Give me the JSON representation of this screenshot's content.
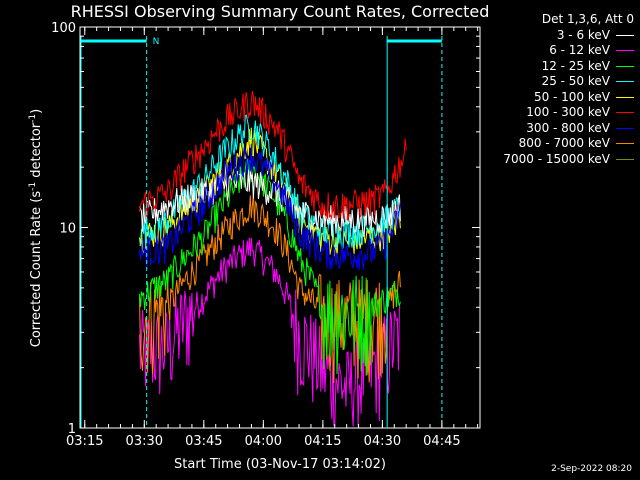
{
  "chart_data": {
    "type": "line",
    "title": "RHESSI Observing Summary Count Rates, Corrected",
    "xlabel": "Start Time (03-Nov-17 03:14:02)",
    "ylabel_main": "Corrected Count Rate (s",
    "ylabel_sup1": "-1",
    "ylabel_mid": " detector",
    "ylabel_sup2": "-1",
    "ylabel_end": ")",
    "yscale": "log",
    "ylim": [
      1,
      100
    ],
    "xlim_minutes": [
      3.23,
      4.91
    ],
    "ytick_labels": [
      "1",
      "10",
      "100"
    ],
    "xtick_labels": [
      "03:15",
      "03:30",
      "03:45",
      "04:00",
      "04:15",
      "04:30",
      "04:45"
    ],
    "xtick_values": [
      3.25,
      3.5,
      3.75,
      4.0,
      4.25,
      4.5,
      4.75
    ],
    "legend_header": "Det 1,3,6, Att 0",
    "night_marker": "N",
    "series": [
      {
        "name": "3 - 6 keV",
        "color": "#ffffff",
        "profile": [
          [
            3.48,
            11
          ],
          [
            3.6,
            13
          ],
          [
            3.75,
            15
          ],
          [
            3.85,
            16.5
          ],
          [
            3.95,
            17
          ],
          [
            4.05,
            15
          ],
          [
            4.15,
            12
          ],
          [
            4.25,
            11
          ],
          [
            4.35,
            11
          ],
          [
            4.45,
            11
          ],
          [
            4.52,
            11.5
          ],
          [
            4.58,
            13
          ]
        ]
      },
      {
        "name": "6 - 12 keV",
        "color": "#ff00ff",
        "profile": [
          [
            3.48,
            2.5
          ],
          [
            3.6,
            2.6
          ],
          [
            3.75,
            4.5
          ],
          [
            3.85,
            6.5
          ],
          [
            3.95,
            8
          ],
          [
            4.05,
            6
          ],
          [
            4.15,
            3
          ],
          [
            4.25,
            2
          ],
          [
            4.35,
            1.6
          ],
          [
            4.45,
            2
          ],
          [
            4.52,
            2.5
          ],
          [
            4.58,
            3
          ]
        ]
      },
      {
        "name": "12 - 25 keV",
        "color": "#00ff00",
        "profile": [
          [
            3.48,
            4.5
          ],
          [
            3.6,
            5.5
          ],
          [
            3.75,
            9
          ],
          [
            3.85,
            14
          ],
          [
            3.95,
            20
          ],
          [
            4.05,
            14
          ],
          [
            4.15,
            7
          ],
          [
            4.25,
            4
          ],
          [
            4.35,
            3.8
          ],
          [
            4.45,
            4
          ],
          [
            4.52,
            4.5
          ],
          [
            4.58,
            5
          ]
        ]
      },
      {
        "name": "25 - 50 keV",
        "color": "#00ffff",
        "profile": [
          [
            3.48,
            9.5
          ],
          [
            3.6,
            11
          ],
          [
            3.75,
            17
          ],
          [
            3.85,
            25
          ],
          [
            3.95,
            33
          ],
          [
            4.05,
            22
          ],
          [
            4.15,
            12
          ],
          [
            4.25,
            9.5
          ],
          [
            4.35,
            9.5
          ],
          [
            4.45,
            10
          ],
          [
            4.52,
            11
          ],
          [
            4.58,
            13
          ]
        ]
      },
      {
        "name": "50 - 100 keV",
        "color": "#ffff00",
        "profile": [
          [
            3.48,
            9
          ],
          [
            3.6,
            10
          ],
          [
            3.75,
            15
          ],
          [
            3.85,
            20
          ],
          [
            3.95,
            28
          ],
          [
            4.05,
            19
          ],
          [
            4.15,
            11
          ],
          [
            4.25,
            8.8
          ],
          [
            4.35,
            8.5
          ],
          [
            4.45,
            9
          ],
          [
            4.52,
            9.5
          ],
          [
            4.58,
            11
          ]
        ]
      },
      {
        "name": "100 - 300 keV",
        "color": "#ff0000",
        "profile": [
          [
            3.48,
            13
          ],
          [
            3.6,
            15
          ],
          [
            3.75,
            25
          ],
          [
            3.85,
            35
          ],
          [
            3.95,
            43
          ],
          [
            4.05,
            32
          ],
          [
            4.15,
            17
          ],
          [
            4.25,
            13
          ],
          [
            4.35,
            13
          ],
          [
            4.45,
            13.5
          ],
          [
            4.52,
            15
          ],
          [
            4.6,
            24
          ]
        ]
      },
      {
        "name": "300 - 800 keV",
        "color": "#0000ff",
        "profile": [
          [
            3.48,
            7.5
          ],
          [
            3.6,
            8
          ],
          [
            3.75,
            13
          ],
          [
            3.85,
            19
          ],
          [
            3.95,
            23
          ],
          [
            4.05,
            17
          ],
          [
            4.15,
            9.5
          ],
          [
            4.25,
            7.5
          ],
          [
            4.35,
            7.3
          ],
          [
            4.45,
            7.5
          ],
          [
            4.52,
            8.5
          ],
          [
            4.58,
            12
          ]
        ]
      },
      {
        "name": "800 - 7000 keV",
        "color": "#ff8800",
        "profile": [
          [
            3.48,
            3.5
          ],
          [
            3.6,
            4
          ],
          [
            3.75,
            7
          ],
          [
            3.85,
            10
          ],
          [
            3.95,
            13
          ],
          [
            4.05,
            10
          ],
          [
            4.15,
            5
          ],
          [
            4.25,
            3.7
          ],
          [
            4.35,
            3.6
          ],
          [
            4.45,
            3.7
          ],
          [
            4.52,
            4
          ],
          [
            4.58,
            5.5
          ]
        ]
      },
      {
        "name": "7000 - 15000 keV",
        "color": "#888800",
        "profile": []
      }
    ],
    "night_periods_minutes": [
      [
        3.23,
        3.51
      ],
      [
        4.52,
        4.75
      ]
    ],
    "saa_or_gap_lines_minutes": [
      3.51,
      4.52,
      4.75
    ]
  },
  "footer": "2-Sep-2022 08:20"
}
